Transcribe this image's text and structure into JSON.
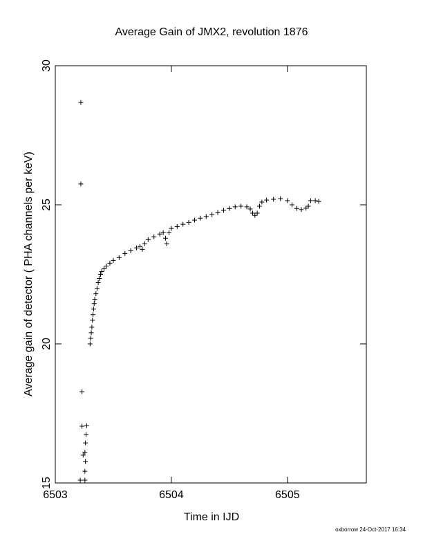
{
  "chart_data": {
    "type": "scatter",
    "title": "Average Gain of JMX2, revolution 1876",
    "x_label": "Time in IJD",
    "y_label": "Average gain of detector ( PHA channels per keV)",
    "footer": "oxborrow 24-Oct-2017 16:34",
    "color": "#000000",
    "xlim": [
      6503,
      6505.68
    ],
    "ylim": [
      15,
      30
    ],
    "xticks": [
      6503,
      6504,
      6505
    ],
    "yticks": [
      15,
      20,
      25,
      30
    ],
    "x": [
      6503.22,
      6503.22,
      6503.23,
      6503.23,
      6503.27,
      6503.265,
      6503.26,
      6503.24,
      6503.255,
      6503.26,
      6503.255,
      6503.215,
      6503.255,
      6503.3,
      6503.305,
      6503.31,
      6503.315,
      6503.32,
      6503.325,
      6503.33,
      6503.335,
      6503.34,
      6503.35,
      6503.36,
      6503.37,
      6503.38,
      6503.39,
      6503.4,
      6503.42,
      6503.44,
      6503.47,
      6503.5,
      6503.55,
      6503.6,
      6503.65,
      6503.7,
      6503.73,
      6503.75,
      6503.77,
      6503.8,
      6503.85,
      6503.9,
      6503.93,
      6503.95,
      6503.96,
      6503.98,
      6504.0,
      6504.05,
      6504.1,
      6504.15,
      6504.2,
      6504.25,
      6504.3,
      6504.35,
      6504.4,
      6504.45,
      6504.5,
      6504.55,
      6504.6,
      6504.65,
      6504.68,
      6504.7,
      6504.72,
      6504.74,
      6504.76,
      6504.78,
      6504.82,
      6504.88,
      6504.94,
      6505.0,
      6505.04,
      6505.08,
      6505.12,
      6505.16,
      6505.18,
      6505.2,
      6505.24,
      6505.27
    ],
    "values": [
      28.68,
      25.75,
      18.28,
      17.04,
      17.06,
      16.74,
      16.44,
      16.0,
      16.1,
      15.77,
      15.42,
      15.1,
      15.1,
      20.0,
      20.2,
      20.4,
      20.6,
      20.85,
      21.05,
      21.25,
      21.45,
      21.6,
      21.8,
      22.0,
      22.2,
      22.35,
      22.5,
      22.6,
      22.7,
      22.8,
      22.9,
      23.0,
      23.1,
      23.25,
      23.35,
      23.45,
      23.5,
      23.4,
      23.6,
      23.75,
      23.85,
      23.95,
      24.0,
      23.8,
      23.6,
      24.0,
      24.15,
      24.22,
      24.3,
      24.37,
      24.45,
      24.52,
      24.58,
      24.65,
      24.72,
      24.8,
      24.87,
      24.93,
      24.95,
      24.93,
      24.85,
      24.7,
      24.62,
      24.7,
      24.95,
      25.1,
      25.17,
      25.2,
      25.22,
      25.15,
      25.0,
      24.87,
      24.83,
      24.88,
      24.95,
      25.15,
      25.15,
      25.12
    ]
  }
}
